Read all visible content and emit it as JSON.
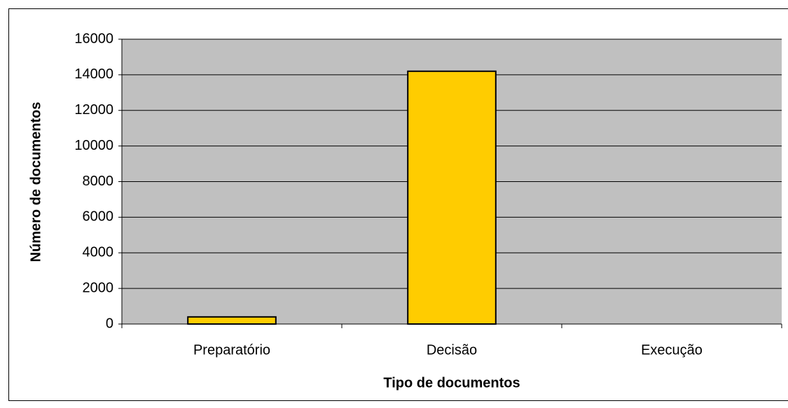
{
  "chart_data": {
    "type": "bar",
    "categories": [
      "Preparatório",
      "Decisão",
      "Execução"
    ],
    "values": [
      400,
      14200,
      0
    ],
    "color": "#ffcc00",
    "xlabel": "Tipo de documentos",
    "ylabel": "Número de documentos",
    "ylim": [
      0,
      16000
    ],
    "yticks": [
      0,
      2000,
      4000,
      6000,
      8000,
      10000,
      12000,
      14000,
      16000
    ],
    "grid": true
  }
}
